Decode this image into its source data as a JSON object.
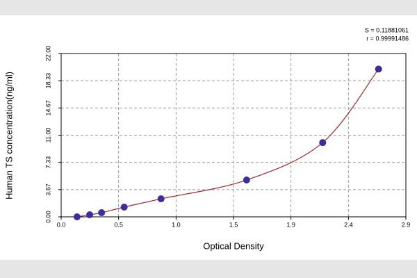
{
  "chart_data": {
    "type": "scatter",
    "line": true,
    "annotations": [
      "S = 0.11881061",
      "r = 0.99991486"
    ],
    "x_label": "Optical Density",
    "y_label": "Human TS concentration(ng/ml)",
    "x": [
      0.134,
      0.24,
      0.34,
      0.53,
      0.84,
      1.56,
      2.2,
      2.67
    ],
    "values": [
      0,
      0.28,
      0.56,
      1.31,
      2.43,
      4.96,
      10.0,
      19.9
    ],
    "point_color": "#3b2d9e",
    "line_color": "#a3262a",
    "xlim": [
      0,
      2.9
    ],
    "xticks": [
      {
        "value": 0,
        "label": "0.0"
      },
      {
        "value": 0.483,
        "label": "0.5"
      },
      {
        "value": 0.967,
        "label": "1.0"
      },
      {
        "value": 1.45,
        "label": "1.5"
      },
      {
        "value": 1.933,
        "label": "1.9"
      },
      {
        "value": 2.417,
        "label": "2.4"
      },
      {
        "value": 2.9,
        "label": "2.9"
      }
    ],
    "ylim": [
      0,
      22
    ],
    "yticks": [
      {
        "value": 0,
        "label": "0.00"
      },
      {
        "value": 3.667,
        "label": "3.67"
      },
      {
        "value": 7.333,
        "label": "7.33"
      },
      {
        "value": 11,
        "label": "11.00"
      },
      {
        "value": 14.667,
        "label": "14.67"
      },
      {
        "value": 18.333,
        "label": "18.33"
      },
      {
        "value": 22,
        "label": "22.00"
      }
    ],
    "grid": true
  }
}
